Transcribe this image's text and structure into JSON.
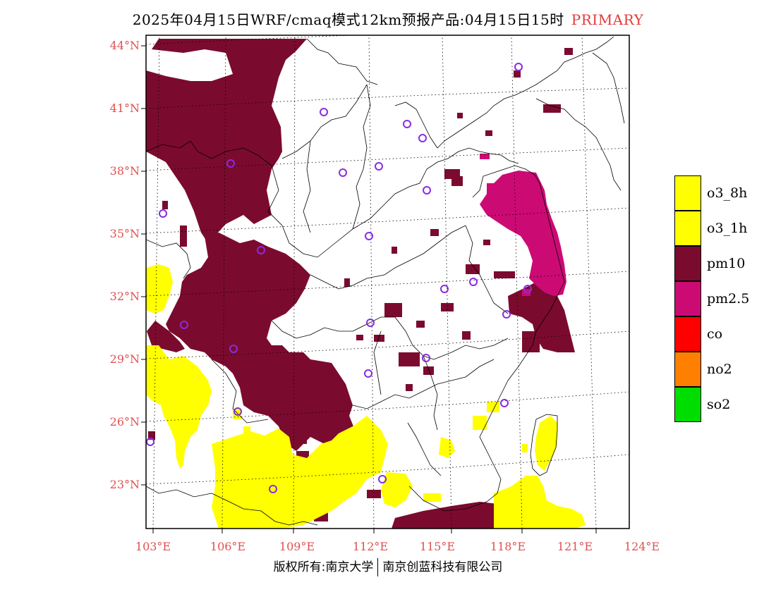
{
  "title": {
    "text": "2025年04月15日WRF/cmaq模式12km预报产品:04月15日15时",
    "flag": "PRIMARY"
  },
  "lat_labels": [
    "44°N",
    "41°N",
    "38°N",
    "35°N",
    "32°N",
    "29°N",
    "26°N",
    "23°N"
  ],
  "lon_labels": [
    "103°E",
    "106°E",
    "109°E",
    "112°E",
    "115°E",
    "118°E",
    "121°E",
    "124°E"
  ],
  "legend": [
    {
      "label": "o3_8h",
      "color": "#ffff00"
    },
    {
      "label": "o3_1h",
      "color": "#ffff00"
    },
    {
      "label": "pm10",
      "color": "#7b0b2e"
    },
    {
      "label": "pm2.5",
      "color": "#cc0a74"
    },
    {
      "label": "co",
      "color": "#ff0000"
    },
    {
      "label": "no2",
      "color": "#ff7f00"
    },
    {
      "label": "so2",
      "color": "#00dd00"
    }
  ],
  "copyright": {
    "left": "版权所有:南京大学",
    "right": "南京创蓝科技有限公司"
  },
  "colors": {
    "pm10": "#7b0b2e",
    "pm25": "#cc0a74",
    "o3": "#ffff00",
    "label_red": "#e05050",
    "city_marker": "#8a2be2"
  }
}
